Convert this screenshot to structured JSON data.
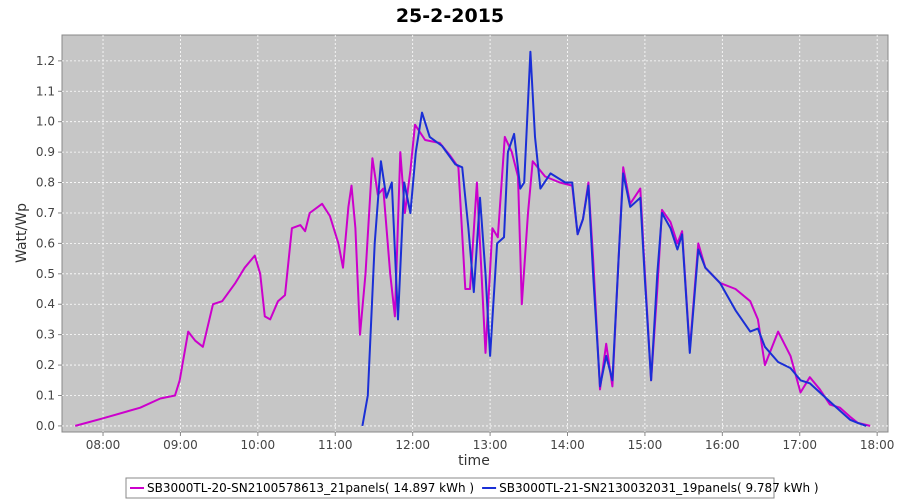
{
  "chart_data": {
    "type": "line",
    "title": "25-2-2015",
    "x_label": "time",
    "y_label": "Watt/Wp",
    "xlim": [
      7.47,
      18.14
    ],
    "ylim": [
      -0.02,
      1.285
    ],
    "grid": true,
    "legend": "bottom",
    "xticks": [
      {
        "value": 8,
        "label": "08:00"
      },
      {
        "value": 9,
        "label": "09:00"
      },
      {
        "value": 10,
        "label": "10:00"
      },
      {
        "value": 11,
        "label": "11:00"
      },
      {
        "value": 12,
        "label": "12:00"
      },
      {
        "value": 13,
        "label": "13:00"
      },
      {
        "value": 14,
        "label": "14:00"
      },
      {
        "value": 15,
        "label": "15:00"
      },
      {
        "value": 16,
        "label": "16:00"
      },
      {
        "value": 17,
        "label": "17:00"
      },
      {
        "value": 18,
        "label": "18:00"
      }
    ],
    "yticks": [
      {
        "value": 0,
        "label": "0.0"
      },
      0.1,
      0.2,
      0.3,
      0.4,
      0.5,
      0.6,
      0.7,
      0.8,
      0.9,
      {
        "value": 1,
        "label": "1.0"
      },
      1.1,
      1.2
    ],
    "series": [
      {
        "name": "SB3000TL-20-SN2100578613_21panels( 14.897 kWh )",
        "color": "#cc00cc",
        "x": [
          7.64,
          8.0,
          8.48,
          8.74,
          8.93,
          8.99,
          9.1,
          9.19,
          9.29,
          9.42,
          9.54,
          9.71,
          9.83,
          9.96,
          10.03,
          10.09,
          10.16,
          10.26,
          10.35,
          10.44,
          10.55,
          10.61,
          10.67,
          10.83,
          10.93,
          11.04,
          11.1,
          11.17,
          11.21,
          11.26,
          11.32,
          11.39,
          11.48,
          11.55,
          11.62,
          11.71,
          11.77,
          11.84,
          11.9,
          11.97,
          12.03,
          12.16,
          12.35,
          12.48,
          12.59,
          12.68,
          12.74,
          12.83,
          12.87,
          12.94,
          13.03,
          13.1,
          13.19,
          13.28,
          13.36,
          13.41,
          13.49,
          13.55,
          13.71,
          13.9,
          14.06,
          14.13,
          14.2,
          14.27,
          14.33,
          14.42,
          14.5,
          14.58,
          14.66,
          14.72,
          14.81,
          14.94,
          15.0,
          15.08,
          15.16,
          15.22,
          15.33,
          15.42,
          15.48,
          15.58,
          15.69,
          15.78,
          15.97,
          16.17,
          16.36,
          16.46,
          16.55,
          16.72,
          16.88,
          17.01,
          17.13,
          17.26,
          17.39,
          17.52,
          17.65,
          17.75,
          17.91
        ],
        "values": [
          0,
          0.025,
          0.06,
          0.09,
          0.1,
          0.15,
          0.31,
          0.28,
          0.26,
          0.4,
          0.41,
          0.47,
          0.52,
          0.56,
          0.5,
          0.36,
          0.35,
          0.41,
          0.43,
          0.65,
          0.66,
          0.64,
          0.7,
          0.73,
          0.69,
          0.6,
          0.52,
          0.72,
          0.79,
          0.65,
          0.3,
          0.5,
          0.88,
          0.76,
          0.78,
          0.5,
          0.36,
          0.9,
          0.7,
          0.84,
          0.99,
          0.94,
          0.93,
          0.89,
          0.85,
          0.45,
          0.45,
          0.8,
          0.6,
          0.24,
          0.65,
          0.62,
          0.95,
          0.9,
          0.82,
          0.4,
          0.7,
          0.87,
          0.82,
          0.8,
          0.79,
          0.63,
          0.68,
          0.8,
          0.55,
          0.12,
          0.27,
          0.13,
          0.55,
          0.85,
          0.73,
          0.78,
          0.5,
          0.15,
          0.45,
          0.71,
          0.67,
          0.6,
          0.64,
          0.25,
          0.6,
          0.52,
          0.47,
          0.45,
          0.41,
          0.35,
          0.2,
          0.31,
          0.23,
          0.11,
          0.16,
          0.12,
          0.07,
          0.06,
          0.03,
          0.01,
          0
        ]
      },
      {
        "name": "SB3000TL-21-SN2130032031_19panels( 9.787 kWh )",
        "color": "#1a2fd6",
        "x": [
          11.35,
          11.42,
          11.51,
          11.59,
          11.66,
          11.73,
          11.81,
          11.89,
          11.97,
          12.04,
          12.12,
          12.22,
          12.38,
          12.55,
          12.64,
          12.72,
          12.79,
          12.87,
          12.94,
          13.0,
          13.09,
          13.18,
          13.23,
          13.31,
          13.39,
          13.44,
          13.52,
          13.58,
          13.65,
          13.78,
          13.97,
          14.06,
          14.13,
          14.2,
          14.27,
          14.33,
          14.42,
          14.5,
          14.58,
          14.66,
          14.72,
          14.81,
          14.94,
          15.0,
          15.08,
          15.16,
          15.22,
          15.33,
          15.42,
          15.48,
          15.58,
          15.69,
          15.78,
          15.97,
          16.17,
          16.36,
          16.46,
          16.55,
          16.72,
          16.88,
          17.01,
          17.13,
          17.26,
          17.39,
          17.52,
          17.65,
          17.75,
          17.86
        ],
        "values": [
          0,
          0.1,
          0.6,
          0.87,
          0.75,
          0.8,
          0.35,
          0.8,
          0.7,
          0.9,
          1.03,
          0.95,
          0.92,
          0.86,
          0.85,
          0.65,
          0.44,
          0.75,
          0.5,
          0.23,
          0.6,
          0.62,
          0.9,
          0.96,
          0.78,
          0.8,
          1.23,
          0.95,
          0.78,
          0.83,
          0.8,
          0.8,
          0.63,
          0.68,
          0.79,
          0.5,
          0.13,
          0.23,
          0.15,
          0.55,
          0.83,
          0.72,
          0.75,
          0.48,
          0.15,
          0.5,
          0.7,
          0.65,
          0.58,
          0.63,
          0.24,
          0.58,
          0.52,
          0.47,
          0.38,
          0.31,
          0.32,
          0.26,
          0.21,
          0.19,
          0.15,
          0.14,
          0.11,
          0.08,
          0.05,
          0.02,
          0.01,
          0
        ]
      }
    ]
  }
}
